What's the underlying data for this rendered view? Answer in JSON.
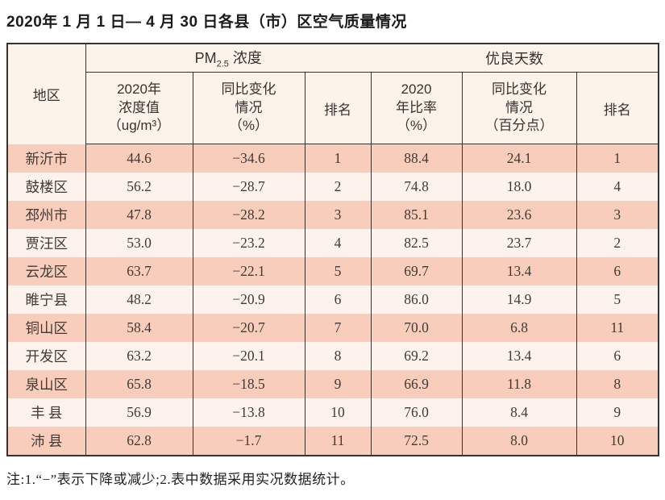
{
  "title": "2020年 1 月 1 日— 4 月 30 日各县（市）区空气质量情况",
  "table": {
    "region_header": "地区",
    "pm_group": {
      "prefix": "PM",
      "sub": "2.5",
      "suffix": " 浓度"
    },
    "good_days_group": "优良天数",
    "sub_headers": {
      "pm_value": {
        "line1": "2020年",
        "line2": "浓度值",
        "line3": "（ug/m³）"
      },
      "pm_change": {
        "line1": "同比变化",
        "line2": "情况",
        "line3": "（%）"
      },
      "pm_rank": "排名",
      "ratio": {
        "line1": "2020",
        "line2": "年比率",
        "line3": "（%）"
      },
      "ratio_change": {
        "line1": "同比变化",
        "line2": "情况",
        "line3": "（百分点）"
      },
      "ratio_rank": "排名"
    },
    "rows": [
      {
        "region": "新沂市",
        "pm_value": "44.6",
        "pm_change": "−34.6",
        "pm_rank": "1",
        "ratio": "88.4",
        "ratio_change": "24.1",
        "ratio_rank": "1"
      },
      {
        "region": "鼓楼区",
        "pm_value": "56.2",
        "pm_change": "−28.7",
        "pm_rank": "2",
        "ratio": "74.8",
        "ratio_change": "18.0",
        "ratio_rank": "4"
      },
      {
        "region": "邳州市",
        "pm_value": "47.8",
        "pm_change": "−28.2",
        "pm_rank": "3",
        "ratio": "85.1",
        "ratio_change": "23.6",
        "ratio_rank": "3"
      },
      {
        "region": "贾汪区",
        "pm_value": "53.0",
        "pm_change": "−23.2",
        "pm_rank": "4",
        "ratio": "82.5",
        "ratio_change": "23.7",
        "ratio_rank": "2"
      },
      {
        "region": "云龙区",
        "pm_value": "63.7",
        "pm_change": "−22.1",
        "pm_rank": "5",
        "ratio": "69.7",
        "ratio_change": "13.4",
        "ratio_rank": "6"
      },
      {
        "region": "睢宁县",
        "pm_value": "48.2",
        "pm_change": "−20.9",
        "pm_rank": "6",
        "ratio": "86.0",
        "ratio_change": "14.9",
        "ratio_rank": "5"
      },
      {
        "region": "铜山区",
        "pm_value": "58.4",
        "pm_change": "−20.7",
        "pm_rank": "7",
        "ratio": "70.0",
        "ratio_change": "6.8",
        "ratio_rank": "11"
      },
      {
        "region": "开发区",
        "pm_value": "63.2",
        "pm_change": "−20.1",
        "pm_rank": "8",
        "ratio": "69.2",
        "ratio_change": "13.4",
        "ratio_rank": "6"
      },
      {
        "region": "泉山区",
        "pm_value": "65.8",
        "pm_change": "−18.5",
        "pm_rank": "9",
        "ratio": "66.9",
        "ratio_change": "11.8",
        "ratio_rank": "8"
      },
      {
        "region": "丰 县",
        "pm_value": "56.9",
        "pm_change": "−13.8",
        "pm_rank": "10",
        "ratio": "76.0",
        "ratio_change": "8.4",
        "ratio_rank": "9"
      },
      {
        "region": "沛 县",
        "pm_value": "62.8",
        "pm_change": "−1.7",
        "pm_rank": "11",
        "ratio": "72.5",
        "ratio_change": "8.0",
        "ratio_rank": "10"
      }
    ]
  },
  "note": "注:1.“−”表示下降或减少;2.表中数据采用实况数据统计。",
  "colors": {
    "row_odd": "#f9cdbb",
    "row_even": "#fdf2ec",
    "header_bg": "#fcf4ea",
    "border": "#3a322f",
    "text": "#403a37"
  }
}
